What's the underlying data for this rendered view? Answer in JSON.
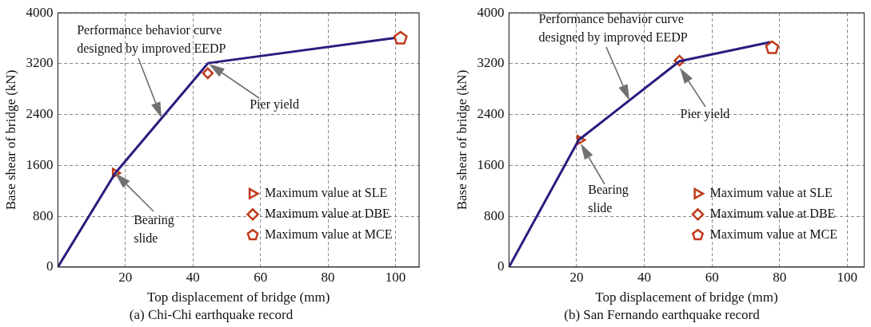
{
  "chart_data": [
    {
      "type": "line",
      "title": "(a) Chi-Chi earthquake record",
      "xlabel": "Top displacement of bridge (mm)",
      "ylabel": "Base shear of bridge (kN)",
      "xlim": [
        0,
        107
      ],
      "ylim": [
        0,
        4000
      ],
      "xticks": [
        20,
        40,
        60,
        80,
        100
      ],
      "yticks": [
        0,
        800,
        1600,
        2400,
        3200,
        4000
      ],
      "grid": true,
      "legend": "bottom right",
      "series": [
        {
          "type": "line",
          "color": "#2b1d7e",
          "marker": "none",
          "x": [
            0,
            17,
            44.5,
            103
          ],
          "values": [
            0,
            1480,
            3210,
            3630
          ]
        },
        {
          "type": "scatter",
          "name": "Maximum value at SLE",
          "color": "#c0391b",
          "marker": "triangle",
          "x": [
            17
          ],
          "values": [
            1480
          ]
        },
        {
          "type": "scatter",
          "name": "Maximum value at DBE",
          "color": "#c0391b",
          "marker": "diamond",
          "x": [
            44.4
          ],
          "values": [
            3050
          ]
        },
        {
          "type": "scatter",
          "name": "Maximum value at MCE",
          "color": "#c0391b",
          "x": [
            101.5
          ],
          "values": [
            3600
          ]
        }
      ],
      "annotations": [
        "Performance behavior curve\ndesigned by improved EEDP",
        "Pier yield",
        "Bearing\nslide"
      ]
    },
    {
      "type": "line",
      "title": "(b) San Fernando earthquake record",
      "xlabel": "Top displacement of bridge (mm)",
      "ylabel": "Base shear of bridge (kN)",
      "xlim": [
        0,
        105
      ],
      "ylim": [
        0,
        4000
      ],
      "xticks": [
        20,
        40,
        60,
        80,
        100
      ],
      "yticks": [
        0,
        800,
        1600,
        2400,
        3200,
        4000
      ],
      "grid": true,
      "legend": "bottom right",
      "series": [
        {
          "type": "line",
          "color": "#2b1d7e",
          "marker": "none",
          "x": [
            0,
            20.6,
            50.4,
            77.3
          ],
          "values": [
            0,
            2000,
            3240,
            3540
          ]
        },
        {
          "type": "scatter",
          "name": "Maximum value at SLE",
          "color": "#c0391b",
          "marker": "triangle",
          "x": [
            21
          ],
          "values": [
            2000
          ]
        },
        {
          "type": "scatter",
          "name": "Maximum value at DBE",
          "color": "#c0391b",
          "marker": "diamond",
          "x": [
            50.4
          ],
          "values": [
            3250
          ]
        },
        {
          "type": "scatter",
          "name": "Maximum value at MCE",
          "color": "#c0391b",
          "x": [
            77.8
          ],
          "values": [
            3450
          ]
        }
      ],
      "annotations": [
        "Performance behavior curve\ndesigned by improved EEDP",
        "Pier yield",
        "Bearing\nslide"
      ]
    }
  ]
}
